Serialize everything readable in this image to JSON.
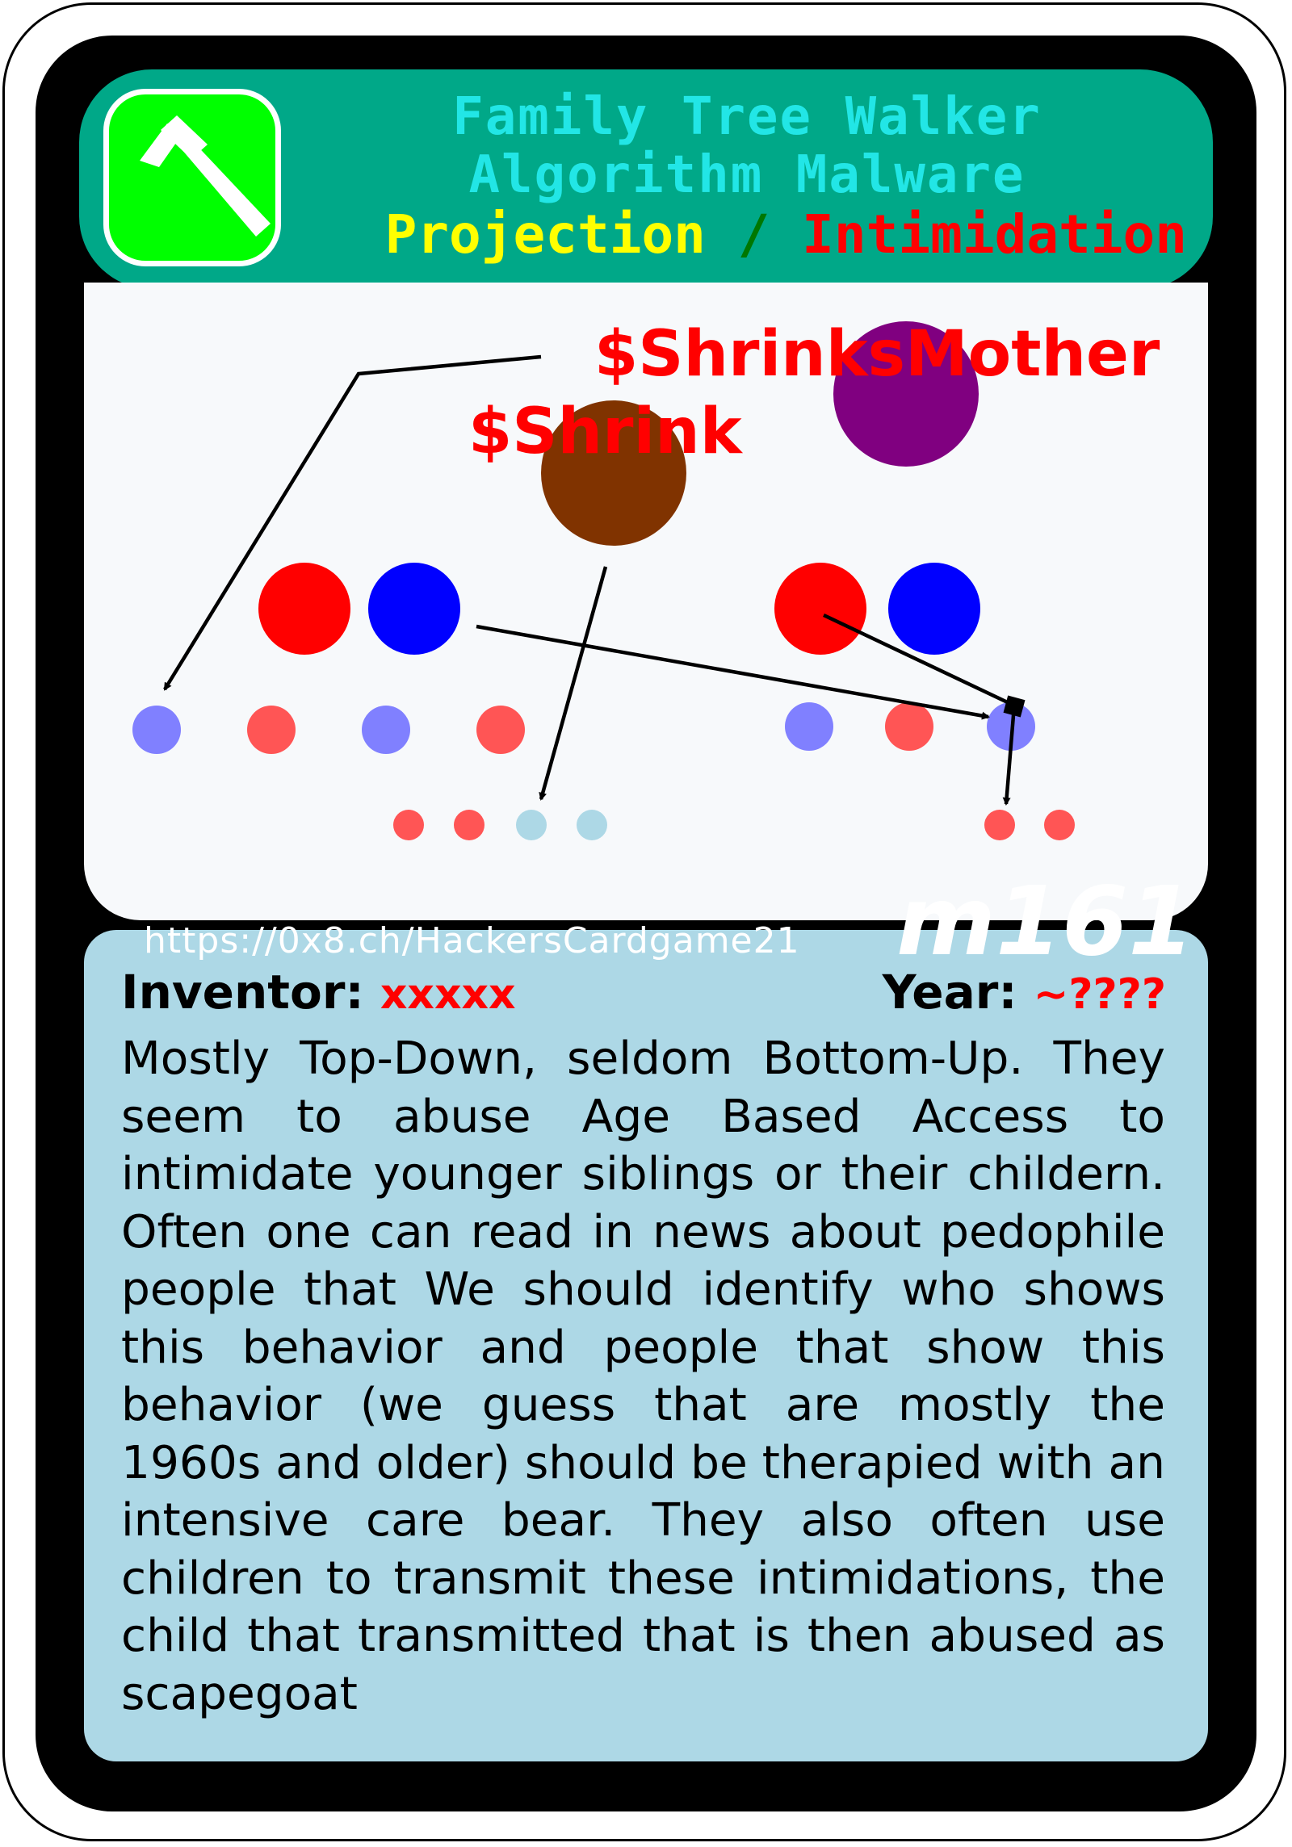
{
  "card": {
    "title_line1": "Family Tree Walker",
    "title_line2": "Algorithm Malware",
    "category_a": "Projection",
    "separator": "/",
    "category_b": "Intimidation",
    "icon": "hammer-icon",
    "colors": {
      "header": "#00a888",
      "icon_bg": "#00ff00",
      "body": "#add8e6",
      "title": "#22e6e6",
      "category_a": "#ffff00",
      "category_b": "#ff0000"
    }
  },
  "illustration": {
    "label_mother": "$ShrinksMother",
    "label_shrink": "$Shrink"
  },
  "footer": {
    "url": "https://0x8.ch/HackersCardgame21",
    "code": "m161"
  },
  "meta": {
    "inventor_label": "Inventor:",
    "inventor_value": "xxxxx",
    "year_label": "Year:",
    "year_value": "~????"
  },
  "description": "Mostly Top-Down, seldom Bottom-Up. They seem to abuse Age Based Access to intimidate younger siblings or their childern. Often one can read in news about pedophile people that We should identify who shows this behavior and people that show this behavior (we guess that are mostly the 1960s and older) should be therapied with an intensive care bear. They also often use children to transmit these intimidations, the child that transmitted that is then abused as scapegoat"
}
